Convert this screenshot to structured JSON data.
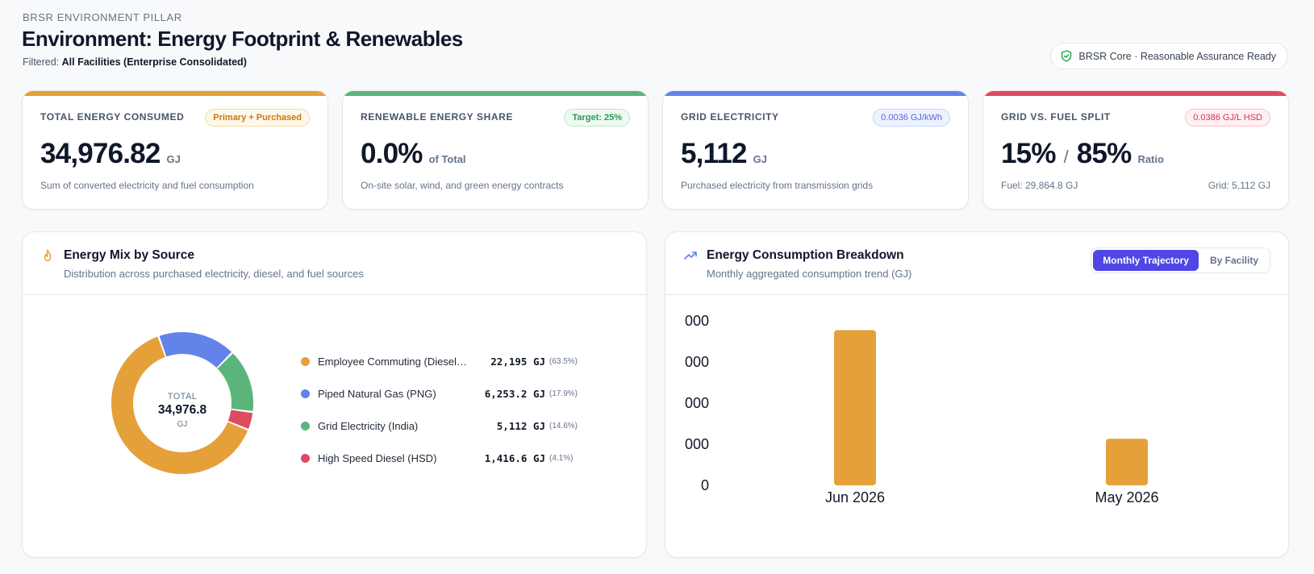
{
  "header": {
    "eyebrow": "BRSR ENVIRONMENT PILLAR",
    "title": "Environment: Energy Footprint & Renewables",
    "filter_label": "Filtered:",
    "filter_value": "All Facilities (Enterprise Consolidated)",
    "assurance_badge": "BRSR Core · Reasonable Assurance Ready"
  },
  "colors": {
    "orange": "#e5a03a",
    "green": "#5bb57a",
    "blue": "#6382ea",
    "red": "#dc4b5e",
    "accent": "#4f46e5"
  },
  "kpis": [
    {
      "label": "TOTAL ENERGY CONSUMED",
      "badge": "Primary + Purchased",
      "value": "34,976.82",
      "unit": "GJ",
      "desc": "Sum of converted electricity and fuel consumption"
    },
    {
      "label": "RENEWABLE ENERGY SHARE",
      "badge": "Target: 25%",
      "value": "0.0%",
      "unit": "of Total",
      "desc": "On-site solar, wind, and green energy contracts"
    },
    {
      "label": "GRID ELECTRICITY",
      "badge": "0.0036 GJ/kWh",
      "value": "5,112",
      "unit": "GJ",
      "desc": "Purchased electricity from transmission grids"
    },
    {
      "label": "GRID VS. FUEL SPLIT",
      "badge": "0.0386 GJ/L HSD",
      "value_a": "15%",
      "separator": "/",
      "value_b": "85%",
      "unit": "Ratio",
      "desc_left": "Fuel: 29,864.8 GJ",
      "desc_right": "Grid: 5,112 GJ"
    }
  ],
  "energy_mix": {
    "title": "Energy Mix by Source",
    "subtitle": "Distribution across purchased electricity, diesel, and fuel sources",
    "center_label": "TOTAL",
    "center_value": "34,976.8",
    "center_unit": "GJ",
    "items": [
      {
        "name": "Employee Commuting (Diesel…",
        "value": "22,195 GJ",
        "pct": "(63.5%)",
        "share": 63.5,
        "color": "#e5a03a"
      },
      {
        "name": "Piped Natural Gas (PNG)",
        "value": "6,253.2 GJ",
        "pct": "(17.9%)",
        "share": 17.9,
        "color": "#6382ea"
      },
      {
        "name": "Grid Electricity (India)",
        "value": "5,112 GJ",
        "pct": "(14.6%)",
        "share": 14.6,
        "color": "#5bb57a"
      },
      {
        "name": "High Speed Diesel (HSD)",
        "value": "1,416.6 GJ",
        "pct": "(4.1%)",
        "share": 4.1,
        "color": "#dc4b5e"
      }
    ]
  },
  "consumption": {
    "title": "Energy Consumption Breakdown",
    "subtitle": "Monthly aggregated consumption trend (GJ)",
    "tabs": [
      {
        "label": "Monthly Trajectory",
        "active": true
      },
      {
        "label": "By Facility",
        "active": false
      }
    ]
  },
  "chart_data": {
    "type": "bar",
    "categories": [
      "Jun 2026",
      "May 2026"
    ],
    "values": [
      28300,
      8500
    ],
    "ytick_labels": [
      "0",
      "000",
      "000",
      "000",
      "000"
    ],
    "ylim": [
      0,
      30000
    ],
    "color": "#e5a03a",
    "grid": false
  }
}
